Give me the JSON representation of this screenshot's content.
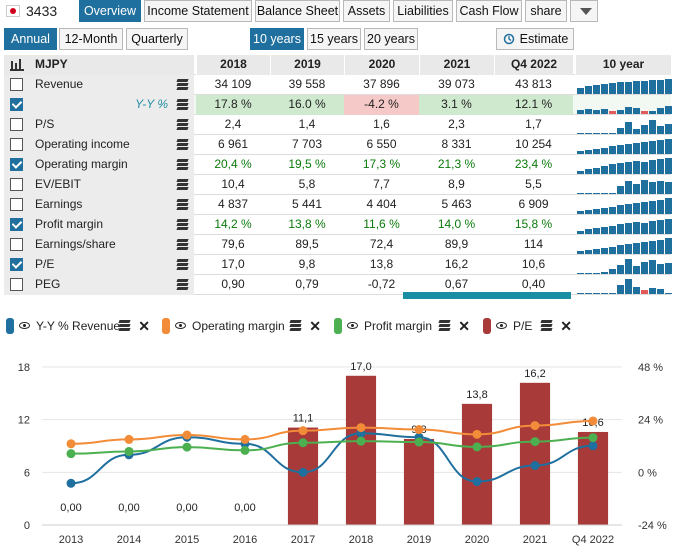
{
  "header": {
    "ticker": "3433",
    "tabs": [
      "Overview",
      "Income Statement",
      "Balance Sheet",
      "Assets",
      "Liabilities",
      "Cash Flow",
      "share"
    ],
    "active_tab": "Overview"
  },
  "controls": {
    "period": [
      "Annual",
      "12-Month",
      "Quarterly"
    ],
    "range": [
      "10 years",
      "15 years",
      "20 years"
    ],
    "estimate_label": "Estimate"
  },
  "table": {
    "unit": "MJPY",
    "columns": [
      "2018",
      "2019",
      "2020",
      "2021",
      "Q4 2022"
    ],
    "spark_header": "10 year",
    "rows": [
      {
        "label": "Revenue",
        "checked": false,
        "values": [
          "34 109",
          "39 558",
          "37 896",
          "39 073",
          "43 813"
        ]
      },
      {
        "label": "Y-Y %",
        "checked": true,
        "values": [
          "17.8 %",
          "16.0 %",
          "-4.2 %",
          "3.1 %",
          "12.1 %"
        ]
      },
      {
        "label": "P/S",
        "checked": false,
        "values": [
          "2,4",
          "1,4",
          "1,6",
          "2,3",
          "1,7"
        ]
      },
      {
        "label": "Operating income",
        "checked": false,
        "values": [
          "6 961",
          "7 703",
          "6 550",
          "8 331",
          "10 254"
        ]
      },
      {
        "label": "Operating margin",
        "checked": true,
        "values": [
          "20,4 %",
          "19,5 %",
          "17,3 %",
          "21,3 %",
          "23,4 %"
        ]
      },
      {
        "label": "EV/EBIT",
        "checked": false,
        "values": [
          "10,4",
          "5,8",
          "7,7",
          "8,9",
          "5,5"
        ]
      },
      {
        "label": "Earnings",
        "checked": false,
        "values": [
          "4 837",
          "5 441",
          "4 404",
          "5 463",
          "6 909"
        ]
      },
      {
        "label": "Profit margin",
        "checked": true,
        "values": [
          "14,2 %",
          "13,8 %",
          "11,6 %",
          "14,0 %",
          "15,8 %"
        ]
      },
      {
        "label": "Earnings/share",
        "checked": false,
        "values": [
          "79,6",
          "89,5",
          "72,4",
          "89,9",
          "114"
        ]
      },
      {
        "label": "P/E",
        "checked": true,
        "values": [
          "17,0",
          "9,8",
          "13,8",
          "16,2",
          "10,6"
        ]
      },
      {
        "label": "PEG",
        "checked": false,
        "values": [
          "0,90",
          "0,79",
          "-0,72",
          "0,67",
          "0,40"
        ]
      }
    ]
  },
  "legend": [
    {
      "name": "Y-Y % Revenue",
      "color": "#1f6f9f"
    },
    {
      "name": "Operating margin",
      "color": "#f28c38"
    },
    {
      "name": "Profit margin",
      "color": "#4caf50"
    },
    {
      "name": "P/E",
      "color": "#a93a3a"
    }
  ],
  "chart_data": {
    "type": "bar",
    "categories": [
      "2013",
      "2014",
      "2015",
      "2016",
      "2017",
      "2018",
      "2019",
      "2020",
      "2021",
      "Q4 2022"
    ],
    "left_ticks": [
      "0",
      "6",
      "12",
      "18"
    ],
    "right_ticks": [
      "-24 %",
      "0 %",
      "24 %",
      "48 %"
    ],
    "ylim_left": [
      0,
      18
    ],
    "ylim_right": [
      -24,
      48
    ],
    "series": [
      {
        "name": "P/E",
        "kind": "bar",
        "axis": "left",
        "color": "#a93a3a",
        "values": [
          0,
          0,
          0,
          0,
          11.1,
          17.0,
          9.8,
          13.8,
          16.2,
          10.6
        ],
        "labels": [
          "0,00",
          "0,00",
          "0,00",
          "0,00",
          "11,1",
          "17,0",
          "9,8",
          "13,8",
          "16,2",
          "10,6"
        ]
      },
      {
        "name": "Y-Y % Revenue",
        "kind": "line",
        "axis": "right",
        "color": "#1f6f9f",
        "values": [
          -5,
          8,
          16,
          13,
          0,
          17.8,
          16.0,
          -4.2,
          3.1,
          12.1
        ]
      },
      {
        "name": "Operating margin",
        "kind": "line",
        "axis": "right",
        "color": "#f28c38",
        "values": [
          13,
          15,
          17,
          15,
          19,
          20.4,
          19.5,
          17.3,
          21.3,
          23.4
        ]
      },
      {
        "name": "Profit margin",
        "kind": "line",
        "axis": "right",
        "color": "#4caf50",
        "values": [
          8.5,
          9.5,
          11.5,
          10,
          13.5,
          14.2,
          13.8,
          11.6,
          14.0,
          15.8
        ]
      }
    ]
  }
}
